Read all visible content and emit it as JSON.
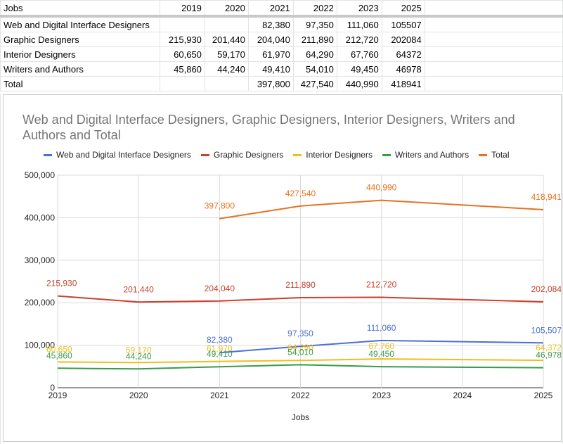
{
  "spreadsheet": {
    "headers": [
      "Jobs",
      "2019",
      "2020",
      "2021",
      "2022",
      "2023",
      "2025"
    ],
    "rows": [
      [
        "Web and Digital Interface Designers",
        "",
        "",
        "82,380",
        "97,350",
        "111,060",
        "105507"
      ],
      [
        "Graphic Designers",
        "215,930",
        "201,440",
        "204,040",
        "211,890",
        "212,720",
        "202084"
      ],
      [
        "Interior Designers",
        "60,650",
        "59,170",
        "61,970",
        "64,290",
        "67,760",
        "64372"
      ],
      [
        "Writers and Authors",
        "45,860",
        "44,240",
        "49,410",
        "54,010",
        "49,450",
        "46978"
      ],
      [
        "Total",
        "",
        "",
        "397,800",
        "427,540",
        "440,990",
        "418941"
      ]
    ]
  },
  "chart_data": {
    "type": "line",
    "title": "Web and Digital Interface Designers, Graphic Designers, Interior Designers, Writers and Authors and Total",
    "xlabel": "Jobs",
    "ylabel": "",
    "x": [
      2019,
      2020,
      2021,
      2022,
      2023,
      2024,
      2025
    ],
    "ylim": [
      0,
      500000
    ],
    "yticks": [
      "0",
      "100,000",
      "200,000",
      "300,000",
      "400,000",
      "500,000"
    ],
    "grid": true,
    "legend_position": "top",
    "series": [
      {
        "name": "Web and Digital Interface Designers",
        "color": "#4a6fd8",
        "points": [
          [
            2021,
            82380
          ],
          [
            2022,
            97350
          ],
          [
            2023,
            111060
          ],
          [
            2025,
            105507
          ]
        ],
        "labels": [
          "82,380",
          "97,350",
          "111,060",
          "105,507"
        ]
      },
      {
        "name": "Graphic Designers",
        "color": "#c9412f",
        "points": [
          [
            2019,
            215930
          ],
          [
            2020,
            201440
          ],
          [
            2021,
            204040
          ],
          [
            2022,
            211890
          ],
          [
            2023,
            212720
          ],
          [
            2025,
            202084
          ]
        ],
        "labels": [
          "215,930",
          "201,440",
          "204,040",
          "211,890",
          "212,720",
          "202,084"
        ]
      },
      {
        "name": "Interior Designers",
        "color": "#f0be1a",
        "points": [
          [
            2019,
            60650
          ],
          [
            2020,
            59170
          ],
          [
            2021,
            61970
          ],
          [
            2022,
            64290
          ],
          [
            2023,
            67760
          ],
          [
            2025,
            64372
          ]
        ],
        "labels": [
          "60,650",
          "59,170",
          "61,970",
          "64,290",
          "67,760",
          "64,372"
        ]
      },
      {
        "name": "Writers and Authors",
        "color": "#3a9a4a",
        "points": [
          [
            2019,
            45860
          ],
          [
            2020,
            44240
          ],
          [
            2021,
            49410
          ],
          [
            2022,
            54010
          ],
          [
            2023,
            49450
          ],
          [
            2025,
            46978
          ]
        ],
        "labels": [
          "45,860",
          "44,240",
          "49,410",
          "54,010",
          "49,450",
          "46,978"
        ]
      },
      {
        "name": "Total",
        "color": "#e8711f",
        "points": [
          [
            2021,
            397800
          ],
          [
            2022,
            427540
          ],
          [
            2023,
            440990
          ],
          [
            2025,
            418941
          ]
        ],
        "labels": [
          "397,800",
          "427,540",
          "440,990",
          "418,941"
        ]
      }
    ]
  }
}
